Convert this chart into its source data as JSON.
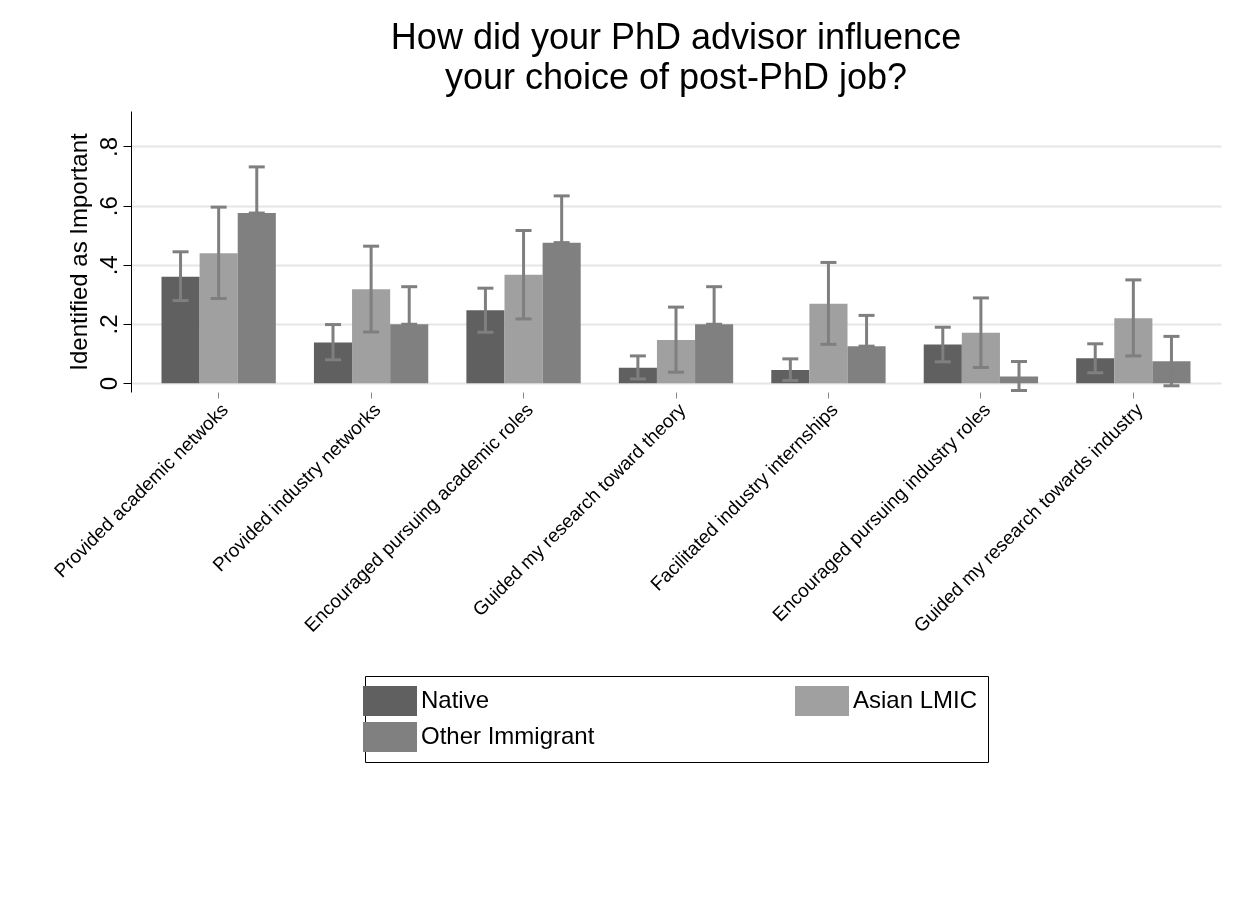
{
  "chart_data": {
    "type": "bar",
    "title": "How did your PhD advisor influence\nyour choice of post-PhD job?",
    "ylabel": "Identified as Important",
    "categories": [
      "Provided academic netwoks",
      "Provided industry networks",
      "Encouraged pursuing academic roles",
      "Guided my research toward theory",
      "Facilitated industry internships",
      "Encouraged pursuing industry roles",
      "Guided my research towards industry"
    ],
    "series": [
      {
        "name": "Native",
        "color": "#606060",
        "values": [
          0.36,
          0.137,
          0.246,
          0.052,
          0.044,
          0.131,
          0.084
        ],
        "errors": [
          [
            0.279,
            0.444
          ],
          [
            0.079,
            0.198
          ],
          [
            0.172,
            0.321
          ],
          [
            0.014,
            0.092
          ],
          [
            0.009,
            0.082
          ],
          [
            0.072,
            0.189
          ],
          [
            0.035,
            0.133
          ]
        ]
      },
      {
        "name": "Asian LMIC",
        "color": "#a0a0a0",
        "values": [
          0.439,
          0.317,
          0.366,
          0.146,
          0.268,
          0.17,
          0.219
        ],
        "errors": [
          [
            0.286,
            0.595
          ],
          [
            0.173,
            0.463
          ],
          [
            0.217,
            0.516
          ],
          [
            0.037,
            0.257
          ],
          [
            0.131,
            0.408
          ],
          [
            0.053,
            0.288
          ],
          [
            0.092,
            0.349
          ]
        ]
      },
      {
        "name": "Other Immigrant",
        "color": "#808080",
        "values": [
          0.575,
          0.199,
          0.475,
          0.199,
          0.125,
          0.022,
          0.074
        ],
        "errors": [
          [
            0.575,
            0.731
          ],
          [
            0.199,
            0.326
          ],
          [
            0.475,
            0.633
          ],
          [
            0.199,
            0.326
          ],
          [
            0.125,
            0.229
          ],
          [
            -0.025,
            0.073
          ],
          [
            -0.009,
            0.158
          ]
        ]
      }
    ],
    "ylim": [
      -0.03,
      0.92
    ],
    "yticks": [
      {
        "value": 0,
        "label": "0"
      },
      {
        "value": 0.2,
        "label": ".2"
      },
      {
        "value": 0.4,
        "label": ".4"
      },
      {
        "value": 0.6,
        "label": ".6"
      },
      {
        "value": 0.8,
        "label": ".8"
      }
    ],
    "grid": "y",
    "legend": "bottom"
  }
}
